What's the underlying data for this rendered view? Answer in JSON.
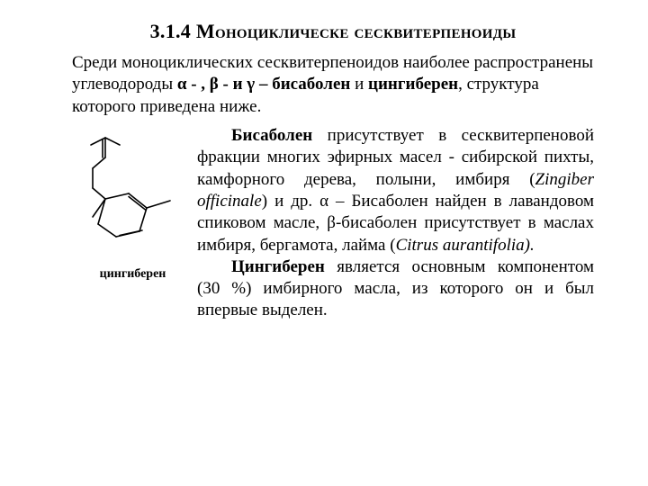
{
  "heading": "3.1.4 Моноциклическе сесквитерпеноиды",
  "intro": {
    "segments": [
      {
        "text": "Среди моноциклических сесквитерпеноидов наиболее распространены углеводороды   ",
        "bold": false
      },
      {
        "text": "α - , β -  и  γ – бисаболен",
        "bold": true
      },
      {
        "text": " и ",
        "bold": false
      },
      {
        "text": "цингиберен",
        "bold": true
      },
      {
        "text": ", структура которого приведена ниже.",
        "bold": false
      }
    ]
  },
  "figure": {
    "caption": "цингиберен",
    "svg": {
      "width": 130,
      "height": 150,
      "stroke": "#000000",
      "stroke_width": 1.6,
      "lines": [
        [
          18,
          18,
          34,
          10
        ],
        [
          34,
          10,
          50,
          18
        ],
        [
          34,
          10,
          34,
          32
        ],
        [
          31,
          12,
          31,
          32
        ],
        [
          34,
          32,
          20,
          44
        ],
        [
          20,
          44,
          20,
          66
        ],
        [
          20,
          66,
          34,
          78
        ],
        [
          34,
          78,
          20,
          98
        ],
        [
          34,
          78,
          60,
          72
        ],
        [
          60,
          72,
          80,
          88
        ],
        [
          80,
          88,
          72,
          114
        ],
        [
          72,
          114,
          46,
          120
        ],
        [
          46,
          120,
          26,
          106
        ],
        [
          26,
          106,
          34,
          78
        ],
        [
          80,
          88,
          106,
          80
        ],
        [
          60,
          75.5,
          78.5,
          90
        ],
        [
          75,
          113,
          50,
          118.5
        ]
      ]
    }
  },
  "para1": {
    "segments": [
      {
        "text": "Бисаболен",
        "bold": true,
        "italic": false
      },
      {
        "text": " присутствует в сесквитерпеновой фракции многих эфирных масел - сибирской пихты, камфорного дерева, полыни, имбиря (",
        "bold": false,
        "italic": false
      },
      {
        "text": "Zingiber officinale",
        "bold": false,
        "italic": true
      },
      {
        "text": ") и др.  α – Бисаболен найден в лавандовом спиковом масле, β-бисаболен присутствует в маслах имбиря, бергамота, лайма (",
        "bold": false,
        "italic": false
      },
      {
        "text": "Citrus aurantifolia).",
        "bold": false,
        "italic": true
      }
    ]
  },
  "para2": {
    "segments": [
      {
        "text": "Цингиберен",
        "bold": true,
        "italic": false
      },
      {
        "text": " является основным компонентом (30 %) имбирного масла, из которого он и был впервые выделен.",
        "bold": false,
        "italic": false
      }
    ]
  }
}
